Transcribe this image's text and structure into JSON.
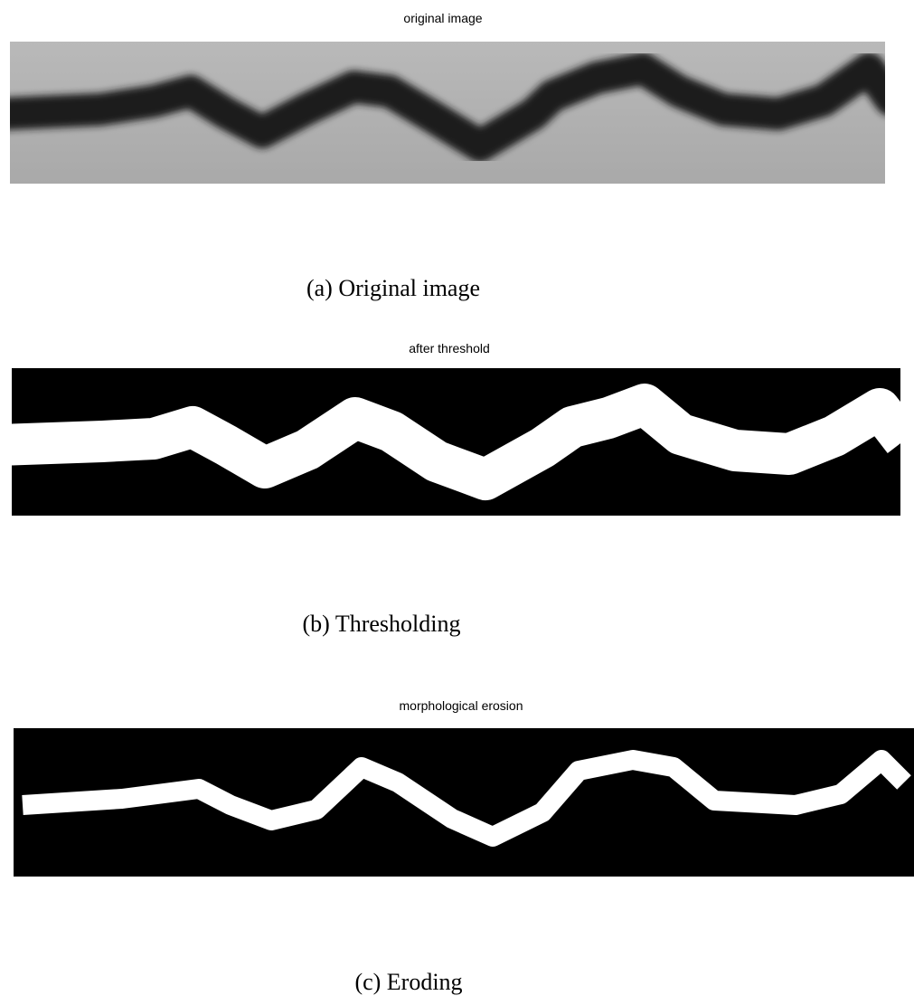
{
  "panels": [
    {
      "title": "original image",
      "caption": "(a) Original image"
    },
    {
      "title": "after threshold",
      "caption": "(b) Thresholding"
    },
    {
      "title": "morphological erosion",
      "caption": "(c) Eroding"
    }
  ]
}
